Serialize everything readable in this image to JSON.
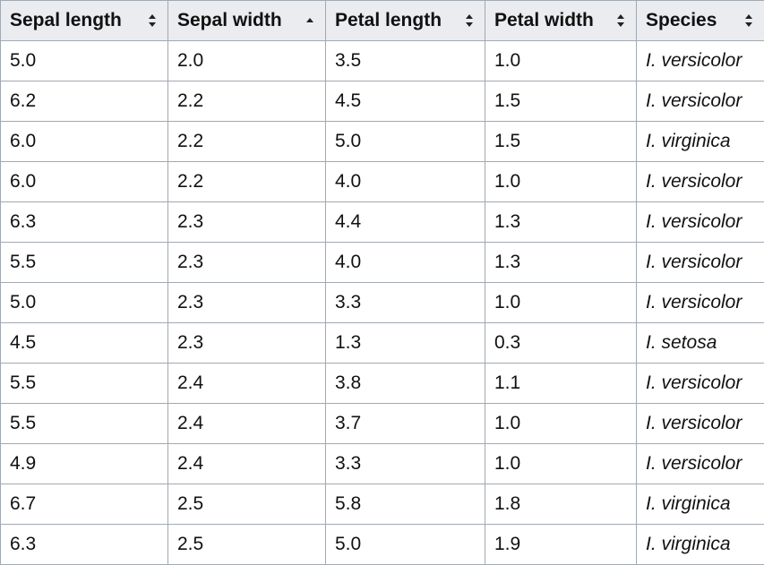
{
  "table": {
    "columns": [
      {
        "label": "Sepal length",
        "sort": "none"
      },
      {
        "label": "Sepal width",
        "sort": "ascending"
      },
      {
        "label": "Petal length",
        "sort": "none"
      },
      {
        "label": "Petal width",
        "sort": "none"
      },
      {
        "label": "Species",
        "sort": "none"
      }
    ],
    "rows": [
      [
        "5.0",
        "2.0",
        "3.5",
        "1.0",
        "I. versicolor"
      ],
      [
        "6.2",
        "2.2",
        "4.5",
        "1.5",
        "I. versicolor"
      ],
      [
        "6.0",
        "2.2",
        "5.0",
        "1.5",
        "I. virginica"
      ],
      [
        "6.0",
        "2.2",
        "4.0",
        "1.0",
        "I. versicolor"
      ],
      [
        "6.3",
        "2.3",
        "4.4",
        "1.3",
        "I. versicolor"
      ],
      [
        "5.5",
        "2.3",
        "4.0",
        "1.3",
        "I. versicolor"
      ],
      [
        "5.0",
        "2.3",
        "3.3",
        "1.0",
        "I. versicolor"
      ],
      [
        "4.5",
        "2.3",
        "1.3",
        "0.3",
        "I. setosa"
      ],
      [
        "5.5",
        "2.4",
        "3.8",
        "1.1",
        "I. versicolor"
      ],
      [
        "5.5",
        "2.4",
        "3.7",
        "1.0",
        "I. versicolor"
      ],
      [
        "4.9",
        "2.4",
        "3.3",
        "1.0",
        "I. versicolor"
      ],
      [
        "6.7",
        "2.5",
        "5.8",
        "1.8",
        "I. virginica"
      ],
      [
        "6.3",
        "2.5",
        "5.0",
        "1.9",
        "I. virginica"
      ]
    ]
  },
  "colors": {
    "header_bg": "#eaecf0",
    "border": "#a2a9b1",
    "icon": "#202122"
  },
  "icons": {
    "sortable": "sort-both-arrows-icon",
    "ascending": "sort-ascending-arrow-icon"
  }
}
